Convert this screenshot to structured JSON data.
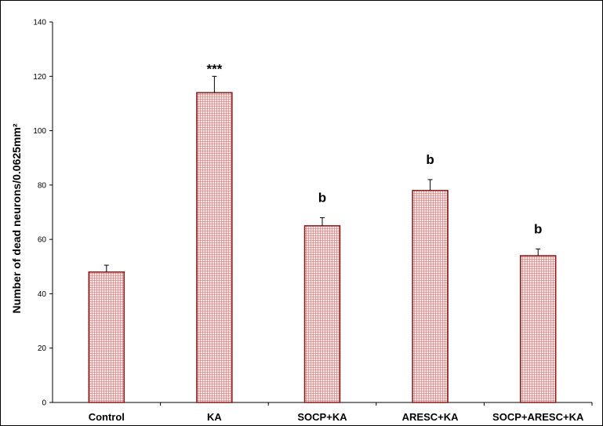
{
  "chart_data": {
    "type": "bar",
    "title": "",
    "xlabel": "",
    "ylabel": "Number of dead neurons/0.0625mm²",
    "ylim": [
      0,
      140
    ],
    "yticks": [
      0,
      20,
      40,
      60,
      80,
      100,
      120,
      140
    ],
    "categories": [
      "Control",
      "KA",
      "SOCP+KA",
      "ARESC+KA",
      "SOCP+ARESC+KA"
    ],
    "values": [
      48,
      114,
      65,
      78,
      54
    ],
    "errors": [
      2.5,
      6,
      3,
      4,
      2.5
    ],
    "annotations": [
      "",
      "***",
      "b",
      "b",
      "b"
    ],
    "grid": false,
    "bar_fill": "#f2d9d9",
    "bar_pattern_color": "#c0504d",
    "bar_edge": "#8b1a1a"
  }
}
